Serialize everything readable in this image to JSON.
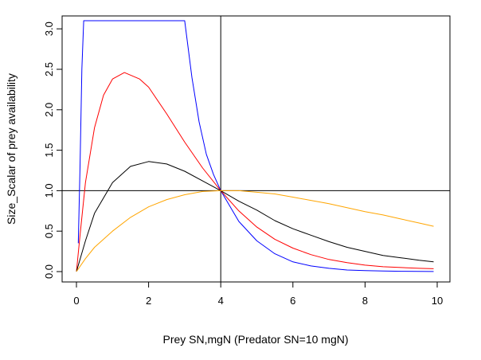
{
  "chart_data": {
    "type": "line",
    "title": "",
    "xlabel": "Prey SN,mgN (Predator SN=10 mgN)",
    "ylabel": "Size_Scalar of prey availability",
    "xlim": [
      0,
      10
    ],
    "ylim": [
      0,
      3.1
    ],
    "xticks": [
      0,
      2,
      4,
      6,
      8,
      10
    ],
    "xtick_labels": [
      "0",
      "2",
      "4",
      "6",
      "8",
      "10"
    ],
    "yticks": [
      0.0,
      0.5,
      1.0,
      1.5,
      2.0,
      2.5,
      3.0
    ],
    "ytick_labels": [
      "0.0",
      "0.5",
      "1.0",
      "1.5",
      "2.0",
      "2.5",
      "3.0"
    ],
    "reference_lines": {
      "vertical_x": 4,
      "horizontal_y": 1
    },
    "series": [
      {
        "name": "blue",
        "color": "#0000ff",
        "x": [
          0.05,
          0.1,
          0.15,
          0.2,
          0.3,
          3.0,
          3.2,
          3.4,
          3.6,
          3.8,
          4.0,
          4.5,
          5.0,
          5.5,
          6.0,
          6.5,
          7.0,
          7.5,
          8.0,
          8.5,
          9.0,
          9.5,
          9.9
        ],
        "y": [
          0.35,
          1.3,
          2.5,
          3.1,
          3.1,
          3.1,
          2.4,
          1.85,
          1.45,
          1.2,
          1.0,
          0.62,
          0.38,
          0.22,
          0.12,
          0.07,
          0.04,
          0.02,
          0.012,
          0.007,
          0.004,
          0.002,
          0.001
        ]
      },
      {
        "name": "red",
        "color": "#ff0000",
        "x": [
          0.0,
          0.1,
          0.25,
          0.5,
          0.75,
          1.0,
          1.33,
          1.75,
          2.0,
          2.5,
          3.0,
          3.5,
          4.0,
          4.5,
          5.0,
          5.5,
          6.0,
          6.5,
          7.0,
          7.5,
          8.0,
          8.5,
          9.0,
          9.5,
          9.9
        ],
        "y": [
          0.0,
          0.45,
          1.1,
          1.78,
          2.18,
          2.38,
          2.46,
          2.38,
          2.28,
          1.95,
          1.6,
          1.28,
          1.0,
          0.75,
          0.55,
          0.4,
          0.29,
          0.21,
          0.15,
          0.11,
          0.08,
          0.06,
          0.05,
          0.04,
          0.035
        ]
      },
      {
        "name": "black",
        "color": "#000000",
        "x": [
          0.0,
          0.25,
          0.5,
          1.0,
          1.5,
          2.0,
          2.5,
          3.0,
          3.5,
          4.0,
          4.5,
          5.0,
          5.5,
          6.0,
          6.5,
          7.0,
          7.5,
          8.0,
          8.5,
          9.0,
          9.5,
          9.9
        ],
        "y": [
          0.0,
          0.38,
          0.72,
          1.1,
          1.3,
          1.36,
          1.33,
          1.24,
          1.12,
          1.0,
          0.87,
          0.76,
          0.63,
          0.53,
          0.45,
          0.37,
          0.3,
          0.25,
          0.2,
          0.17,
          0.14,
          0.12
        ]
      },
      {
        "name": "orange",
        "color": "#ffa500",
        "x": [
          0.0,
          0.25,
          0.5,
          1.0,
          1.5,
          2.0,
          2.5,
          3.0,
          3.5,
          4.0,
          4.5,
          5.0,
          5.5,
          6.0,
          6.5,
          7.0,
          7.5,
          8.0,
          8.5,
          9.0,
          9.5,
          9.9
        ],
        "y": [
          0.0,
          0.16,
          0.3,
          0.5,
          0.67,
          0.8,
          0.89,
          0.95,
          0.99,
          1.0,
          1.0,
          0.98,
          0.96,
          0.92,
          0.88,
          0.84,
          0.79,
          0.74,
          0.7,
          0.65,
          0.6,
          0.56
        ]
      }
    ]
  }
}
